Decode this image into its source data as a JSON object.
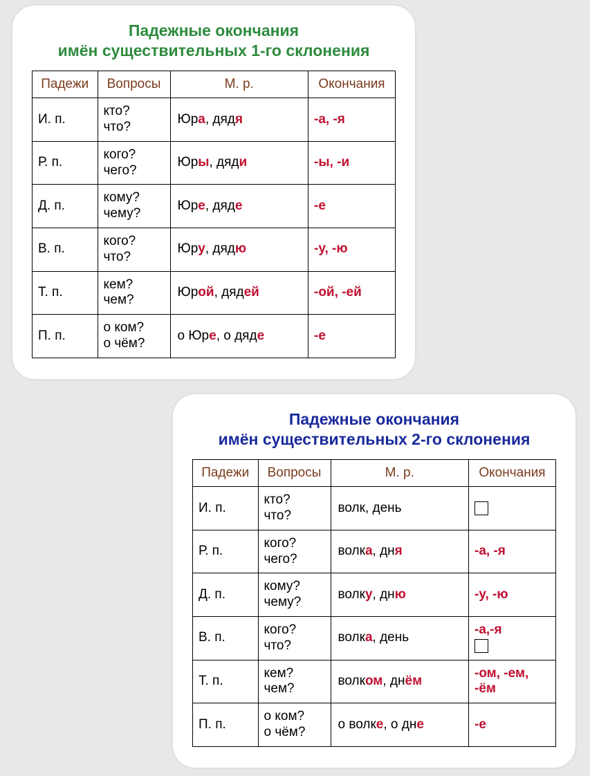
{
  "colors": {
    "title1": "#2e8b3e",
    "title2": "#1a2a9c",
    "header_text": "#7a3b1d",
    "highlight": "#c01030",
    "border": "#000000",
    "card_bg": "#ffffff",
    "page_bg": "#e8e8e8"
  },
  "fonts": {
    "title_size": 23,
    "cell_size": 19,
    "family": "Arial"
  },
  "headers": {
    "col1": "Падежи",
    "col2": "Вопросы",
    "col3": "М. р.",
    "col4": "Окончания"
  },
  "card1": {
    "title_line1": "Падежные окончания",
    "title_line2": "имён существительных 1-го склонения",
    "rows": [
      {
        "case": "И. п.",
        "q1": "кто?",
        "q2": "что?",
        "ex": [
          {
            "t": "Юр"
          },
          {
            "t": "а",
            "h": 1
          },
          {
            "t": ", дяд"
          },
          {
            "t": "я",
            "h": 1
          }
        ],
        "end": [
          {
            "t": "-а, -я",
            "h": 1
          }
        ]
      },
      {
        "case": "Р. п.",
        "q1": "кого?",
        "q2": "чего?",
        "ex": [
          {
            "t": "Юр"
          },
          {
            "t": "ы",
            "h": 1
          },
          {
            "t": ", дяд"
          },
          {
            "t": "и",
            "h": 1
          }
        ],
        "end": [
          {
            "t": "-ы, -и",
            "h": 1
          }
        ]
      },
      {
        "case": "Д. п.",
        "q1": "кому?",
        "q2": "чему?",
        "ex": [
          {
            "t": "Юр"
          },
          {
            "t": "е",
            "h": 1
          },
          {
            "t": ", дяд"
          },
          {
            "t": "е",
            "h": 1
          }
        ],
        "end": [
          {
            "t": "-е",
            "h": 1
          }
        ]
      },
      {
        "case": "В. п.",
        "q1": "кого?",
        "q2": "что?",
        "ex": [
          {
            "t": "Юр"
          },
          {
            "t": "у",
            "h": 1
          },
          {
            "t": ", дяд"
          },
          {
            "t": "ю",
            "h": 1
          }
        ],
        "end": [
          {
            "t": "-у, -ю",
            "h": 1
          }
        ]
      },
      {
        "case": "Т. п.",
        "q1": "кем?",
        "q2": "чем?",
        "ex": [
          {
            "t": "Юр"
          },
          {
            "t": "ой",
            "h": 1
          },
          {
            "t": ", дяд"
          },
          {
            "t": "ей",
            "h": 1
          }
        ],
        "end": [
          {
            "t": "-ой, -ей",
            "h": 1
          }
        ]
      },
      {
        "case": "П. п.",
        "q1": "о ком?",
        "q2": "о чём?",
        "ex": [
          {
            "t": "о Юр"
          },
          {
            "t": "е",
            "h": 1
          },
          {
            "t": ", о дяд"
          },
          {
            "t": "е",
            "h": 1
          }
        ],
        "end": [
          {
            "t": "-е",
            "h": 1
          }
        ]
      }
    ]
  },
  "card2": {
    "title_line1": "Падежные окончания",
    "title_line2": "имён существительных 2-го склонения",
    "rows": [
      {
        "case": "И. п.",
        "q1": "кто?",
        "q2": "что?",
        "ex": [
          {
            "t": "волк, день"
          }
        ],
        "end": [
          {
            "sq": 1
          }
        ]
      },
      {
        "case": "Р. п.",
        "q1": "кого?",
        "q2": "чего?",
        "ex": [
          {
            "t": "волк"
          },
          {
            "t": "а",
            "h": 1
          },
          {
            "t": ", дн"
          },
          {
            "t": "я",
            "h": 1
          }
        ],
        "end": [
          {
            "t": "-а, -я",
            "h": 1
          }
        ]
      },
      {
        "case": "Д. п.",
        "q1": "кому?",
        "q2": "чему?",
        "ex": [
          {
            "t": "волк"
          },
          {
            "t": "у",
            "h": 1
          },
          {
            "t": ", дн"
          },
          {
            "t": "ю",
            "h": 1
          }
        ],
        "end": [
          {
            "t": "-у, -ю",
            "h": 1
          }
        ]
      },
      {
        "case": "В. п.",
        "q1": "кого?",
        "q2": "что?",
        "ex": [
          {
            "t": "волк"
          },
          {
            "t": "а",
            "h": 1
          },
          {
            "t": ", день"
          }
        ],
        "end": [
          {
            "t": "-а,-я",
            "h": 1
          },
          {
            "br": 1
          },
          {
            "sq": 1
          }
        ]
      },
      {
        "case": "Т. п.",
        "q1": "кем?",
        "q2": "чем?",
        "ex": [
          {
            "t": "волк"
          },
          {
            "t": "ом",
            "h": 1
          },
          {
            "t": ", дн"
          },
          {
            "t": "ём",
            "h": 1
          }
        ],
        "end": [
          {
            "t": "-ом, -ем, -ём",
            "h": 1
          }
        ]
      },
      {
        "case": "П. п.",
        "q1": "о ком?",
        "q2": "о чём?",
        "ex": [
          {
            "t": "о волк"
          },
          {
            "t": "е",
            "h": 1
          },
          {
            "t": ", о дн"
          },
          {
            "t": "е",
            "h": 1
          }
        ],
        "end": [
          {
            "t": "-е",
            "h": 1
          }
        ]
      }
    ]
  }
}
